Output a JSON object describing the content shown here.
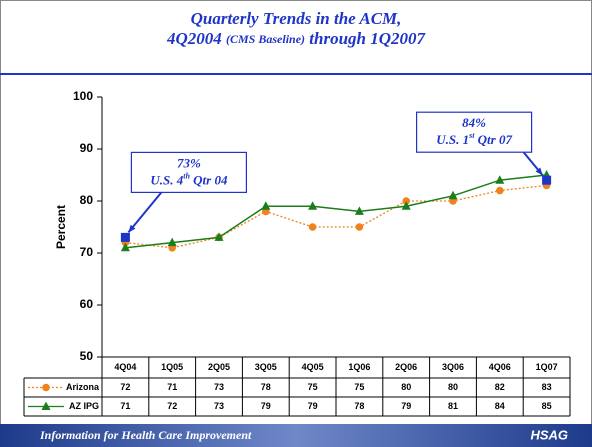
{
  "chart_data": {
    "type": "line",
    "title": [
      "Quarterly Trends in the ACM,",
      [
        "4Q2004 ",
        "(CMS Baseline)",
        " through 1Q2007"
      ]
    ],
    "ylabel": "Percent",
    "categories": [
      "4Q04",
      "1Q05",
      "2Q05",
      "3Q05",
      "4Q05",
      "1Q06",
      "2Q06",
      "3Q06",
      "4Q06",
      "1Q07"
    ],
    "series": [
      {
        "name": "Arizona",
        "color": "#f0821e",
        "marker": "circle",
        "dash": true,
        "values": [
          72,
          71,
          73,
          78,
          75,
          75,
          80,
          80,
          82,
          83
        ]
      },
      {
        "name": "AZ IPG",
        "color": "#1b7d1b",
        "marker": "triangle",
        "dash": false,
        "values": [
          71,
          72,
          73,
          79,
          79,
          78,
          79,
          81,
          84,
          85
        ]
      }
    ],
    "ylim": [
      50,
      100
    ],
    "yticks": [
      50,
      60,
      70,
      80,
      90,
      100
    ],
    "grid": false,
    "annotations": [
      {
        "category": "4Q04",
        "value": 73,
        "value_label": "73%",
        "text": [
          "U.S. 4",
          "th",
          " Qtr 04"
        ],
        "color": "#1f35c8"
      },
      {
        "category": "1Q07",
        "value": 84,
        "value_label": "84%",
        "text": [
          "U.S. 1",
          "st",
          " Qtr 07"
        ],
        "color": "#1f35c8"
      }
    ]
  },
  "footer": {
    "tagline": "Information for Health Care Improvement",
    "logo": "HSAG"
  }
}
